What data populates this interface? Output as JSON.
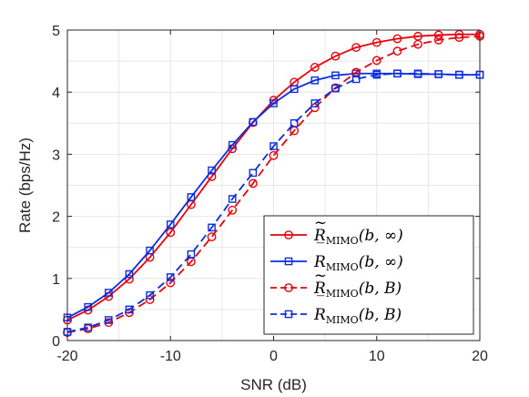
{
  "chart_data": {
    "type": "line",
    "xlabel": "SNR (dB)",
    "ylabel": "Rate (bps/Hz)",
    "xlim": [
      -20,
      20
    ],
    "ylim": [
      0,
      5
    ],
    "xticks": [
      -20,
      -10,
      0,
      10,
      20
    ],
    "yticks": [
      0,
      1,
      2,
      3,
      4,
      5
    ],
    "x_tick_labels": [
      "-20",
      "-10",
      "0",
      "10",
      "20"
    ],
    "y_tick_labels": [
      "0",
      "1",
      "2",
      "3",
      "4",
      "5"
    ],
    "grid": true,
    "legend_position": "bottom-right",
    "series": [
      {
        "name": "R̃MIMO(b,∞)",
        "legend": {
          "accent": "~",
          "sub": "MIMO",
          "args": "(b, ∞)"
        },
        "color": "#e8000b",
        "dash": "solid",
        "marker": "circle",
        "x": [
          -20,
          -18,
          -16,
          -14,
          -12,
          -10,
          -8,
          -6,
          -4,
          -2,
          0,
          2,
          4,
          6,
          8,
          10,
          12,
          14,
          16,
          18,
          20
        ],
        "y": [
          0.33,
          0.49,
          0.71,
          0.99,
          1.34,
          1.74,
          2.19,
          2.64,
          3.09,
          3.51,
          3.87,
          4.16,
          4.4,
          4.58,
          4.72,
          4.8,
          4.86,
          4.9,
          4.92,
          4.93,
          4.93
        ]
      },
      {
        "name": "R̄MIMO(b,∞)",
        "legend": {
          "accent": "‾",
          "sub": "MIMO",
          "args": "(b, ∞)"
        },
        "color": "#0a2ee0",
        "dash": "solid",
        "marker": "square",
        "x": [
          -20,
          -18,
          -16,
          -14,
          -12,
          -10,
          -8,
          -6,
          -4,
          -2,
          0,
          2,
          4,
          6,
          8,
          10,
          12,
          14,
          16,
          18,
          20
        ],
        "y": [
          0.37,
          0.54,
          0.77,
          1.07,
          1.45,
          1.87,
          2.31,
          2.74,
          3.15,
          3.52,
          3.82,
          4.05,
          4.19,
          4.27,
          4.3,
          4.3,
          4.3,
          4.29,
          4.29,
          4.28,
          4.28
        ]
      },
      {
        "name": "R̃MIMO(b,B)",
        "legend": {
          "accent": "~",
          "sub": "MIMO",
          "args": "(b, B)"
        },
        "color": "#e8000b",
        "dash": "dashed",
        "marker": "circle",
        "x": [
          -20,
          -18,
          -16,
          -14,
          -12,
          -10,
          -8,
          -6,
          -4,
          -2,
          0,
          2,
          4,
          6,
          8,
          10,
          12,
          14,
          16,
          18,
          20
        ],
        "y": [
          0.13,
          0.19,
          0.29,
          0.45,
          0.66,
          0.93,
          1.27,
          1.67,
          2.1,
          2.53,
          2.98,
          3.38,
          3.75,
          4.07,
          4.32,
          4.51,
          4.66,
          4.77,
          4.84,
          4.88,
          4.9
        ]
      },
      {
        "name": "R̄MIMO(b,B)",
        "legend": {
          "accent": "‾",
          "sub": "MIMO",
          "args": "(b, B)"
        },
        "color": "#0a2ee0",
        "dash": "dashed",
        "marker": "square",
        "x": [
          -20,
          -18,
          -16,
          -14,
          -12,
          -10,
          -8,
          -6,
          -4,
          -2,
          0,
          2,
          4,
          6,
          8,
          10,
          12,
          14,
          16,
          18,
          20
        ],
        "y": [
          0.14,
          0.21,
          0.33,
          0.5,
          0.73,
          1.02,
          1.39,
          1.82,
          2.28,
          2.7,
          3.13,
          3.5,
          3.82,
          4.06,
          4.21,
          4.28,
          4.3,
          4.3,
          4.29,
          4.28,
          4.28
        ]
      }
    ]
  }
}
